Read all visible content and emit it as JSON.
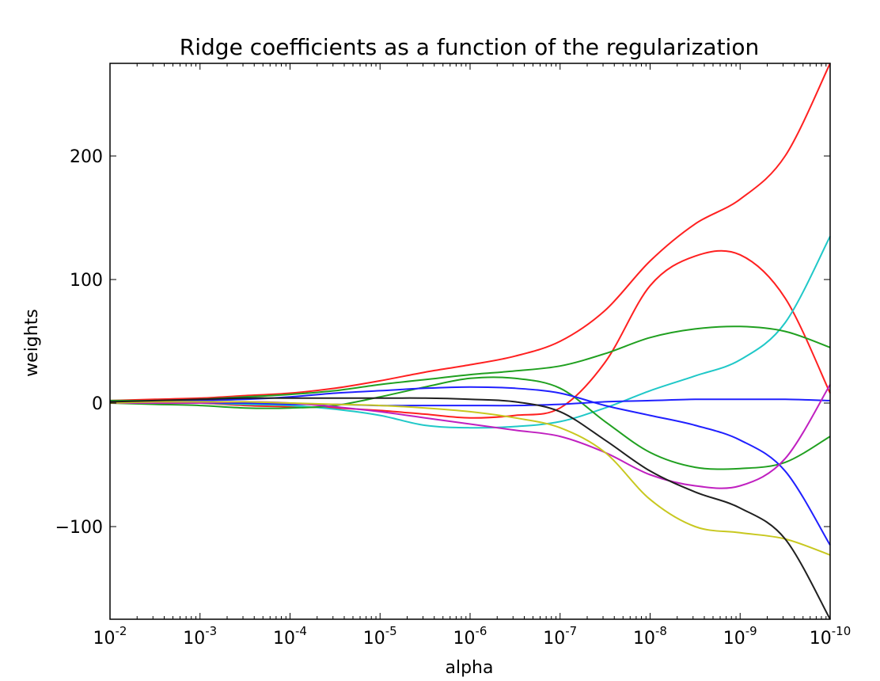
{
  "chart_data": {
    "type": "line",
    "title": "Ridge coefficients as a function of the regularization",
    "xlabel": "alpha",
    "ylabel": "weights",
    "x_scale": "log",
    "x_direction": "decreasing",
    "xlim_exp": [
      -2,
      -10
    ],
    "ylim": [
      -175,
      275
    ],
    "x_ticks": [
      {
        "base": "10",
        "exp": "-2",
        "value_exp": -2
      },
      {
        "base": "10",
        "exp": "-3",
        "value_exp": -3
      },
      {
        "base": "10",
        "exp": "-4",
        "value_exp": -4
      },
      {
        "base": "10",
        "exp": "-5",
        "value_exp": -5
      },
      {
        "base": "10",
        "exp": "-6",
        "value_exp": -6
      },
      {
        "base": "10",
        "exp": "-7",
        "value_exp": -7
      },
      {
        "base": "10",
        "exp": "-8",
        "value_exp": -8
      },
      {
        "base": "10",
        "exp": "-9",
        "value_exp": -9
      },
      {
        "base": "10",
        "exp": "-10",
        "value_exp": -10
      }
    ],
    "y_ticks": [
      {
        "label": "200",
        "value": 200
      },
      {
        "label": "100",
        "value": 100
      },
      {
        "label": "0",
        "value": 0
      },
      {
        "label": "−100",
        "value": -100
      }
    ],
    "x_exp": [
      -2,
      -2.5,
      -3,
      -3.5,
      -4,
      -4.5,
      -5,
      -5.5,
      -6,
      -6.5,
      -7,
      -7.5,
      -8,
      -8.5,
      -9,
      -9.5,
      -10
    ],
    "series": [
      {
        "name": "red-upper",
        "color": "#ff2020",
        "values": [
          2,
          3,
          4,
          6,
          8,
          12,
          18,
          25,
          31,
          38,
          50,
          75,
          115,
          145,
          165,
          200,
          275
        ]
      },
      {
        "name": "red-lower",
        "color": "#ff2020",
        "values": [
          1,
          1,
          0,
          -2,
          -3,
          -4,
          -6,
          -9,
          -12,
          -10,
          -4,
          33,
          95,
          119,
          120,
          85,
          8
        ]
      },
      {
        "name": "cyan",
        "color": "#20c8c8",
        "values": [
          0,
          0,
          0,
          -1,
          -2,
          -5,
          -10,
          -18,
          -20,
          -19,
          -15,
          -4,
          10,
          22,
          35,
          65,
          135
        ]
      },
      {
        "name": "green-upper",
        "color": "#20a020",
        "values": [
          2,
          2,
          3,
          5,
          7,
          10,
          15,
          19,
          23,
          26,
          30,
          40,
          53,
          60,
          62,
          58,
          45
        ]
      },
      {
        "name": "green-lower",
        "color": "#20a020",
        "values": [
          0,
          -1,
          -2,
          -4,
          -4,
          -2,
          5,
          13,
          20,
          20,
          12,
          -15,
          -40,
          -52,
          -53,
          -48,
          -27
        ]
      },
      {
        "name": "blue-upper",
        "color": "#2020ff",
        "values": [
          1,
          1,
          2,
          3,
          5,
          8,
          10,
          12,
          13,
          12,
          8,
          -2,
          -10,
          -18,
          -30,
          -55,
          -115
        ]
      },
      {
        "name": "blue-lower",
        "color": "#2020ff",
        "values": [
          0,
          0,
          0,
          0,
          -1,
          -1,
          -2,
          -2,
          -2,
          -2,
          -1,
          1,
          2,
          3,
          3,
          3,
          2
        ]
      },
      {
        "name": "magenta",
        "color": "#c020c0",
        "values": [
          0,
          0,
          0,
          1,
          0,
          -3,
          -7,
          -12,
          -17,
          -22,
          -27,
          -40,
          -58,
          -67,
          -67,
          -45,
          15
        ]
      },
      {
        "name": "yellow",
        "color": "#c8c820",
        "values": [
          0,
          1,
          1,
          1,
          0,
          -1,
          -2,
          -4,
          -7,
          -12,
          -20,
          -40,
          -78,
          -100,
          -105,
          -110,
          -123
        ]
      },
      {
        "name": "black",
        "color": "#202020",
        "values": [
          1,
          2,
          3,
          4,
          4,
          4,
          4,
          4,
          3,
          1,
          -7,
          -30,
          -55,
          -72,
          -85,
          -110,
          -177
        ]
      }
    ]
  }
}
